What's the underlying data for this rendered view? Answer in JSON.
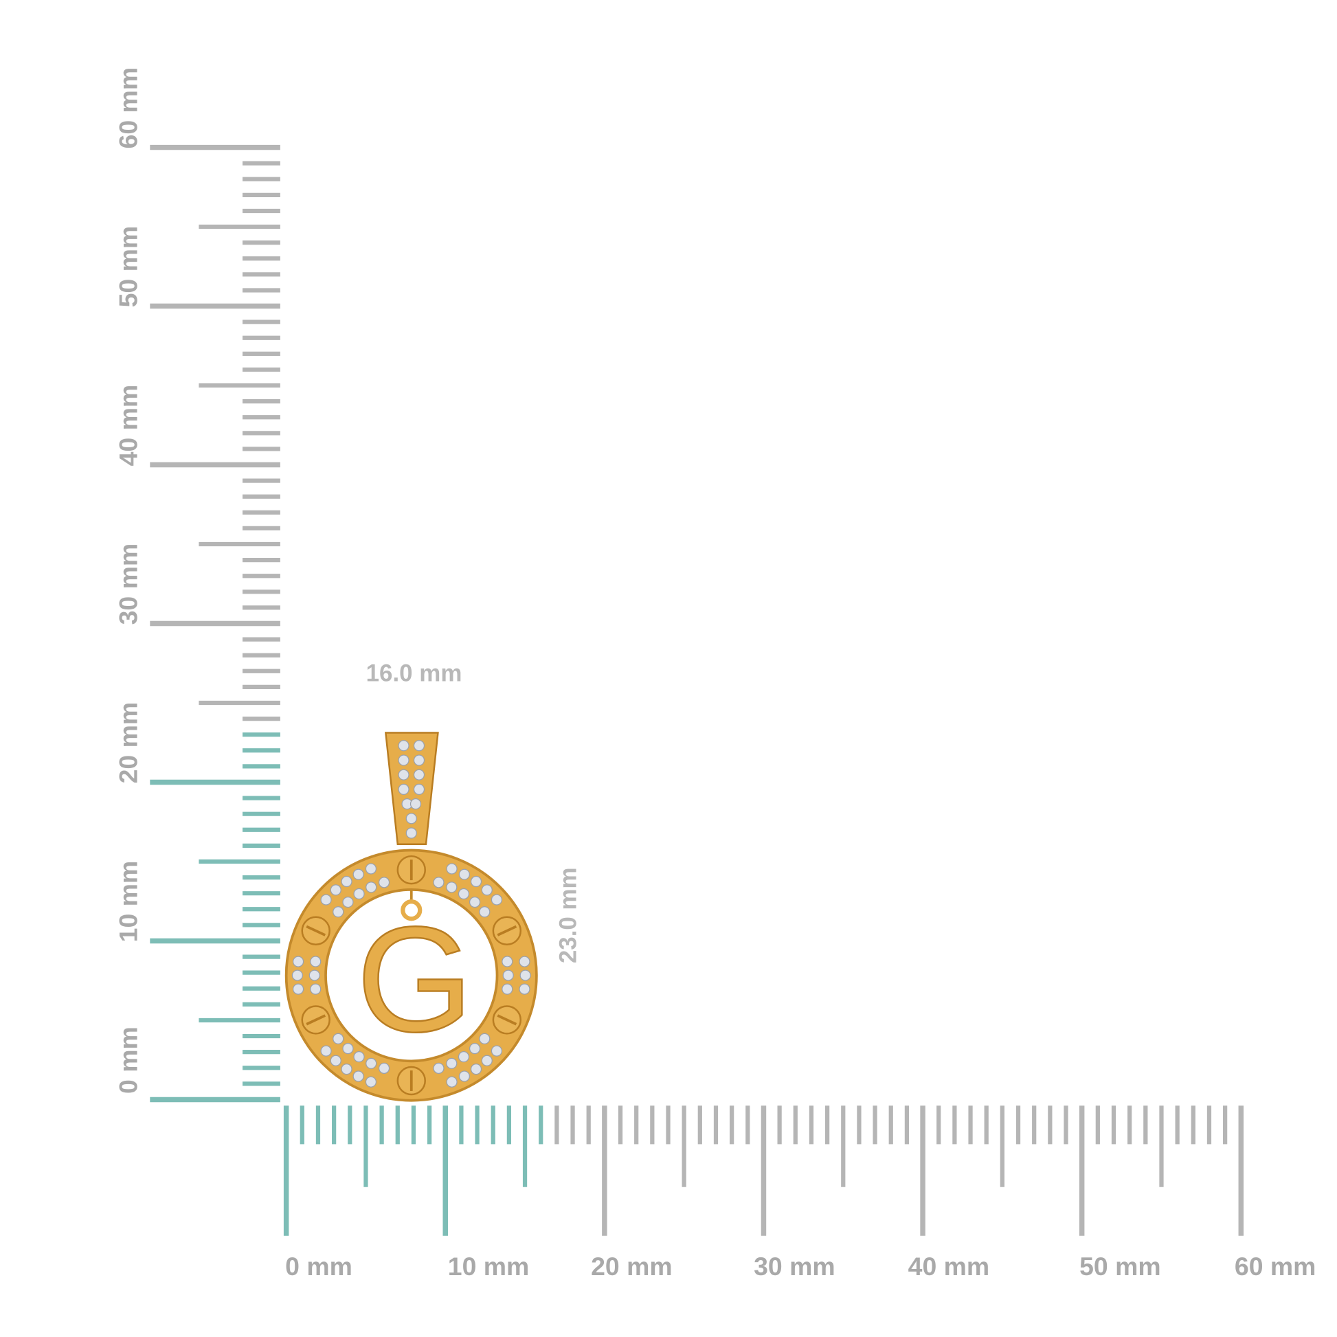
{
  "vertical_ruler": {
    "labels": [
      "0 mm",
      "10 mm",
      "20 mm",
      "30 mm",
      "40 mm",
      "50 mm",
      "60 mm"
    ],
    "max_mm": 60,
    "highlight_mm": 23
  },
  "horizontal_ruler": {
    "labels": [
      "0 mm",
      "10 mm",
      "20 mm",
      "30 mm",
      "40 mm",
      "50 mm",
      "60 mm"
    ],
    "max_mm": 60,
    "highlight_mm": 16
  },
  "dimensions": {
    "width_label": "16.0 mm",
    "height_label": "23.0 mm"
  },
  "product": {
    "letter": "G"
  },
  "colors": {
    "highlight": "#7dbdb6",
    "tick": "#b5b5b5",
    "gold": "#e6ad4a",
    "gold_dark": "#b97d22",
    "stone": "#dfe3ea"
  }
}
